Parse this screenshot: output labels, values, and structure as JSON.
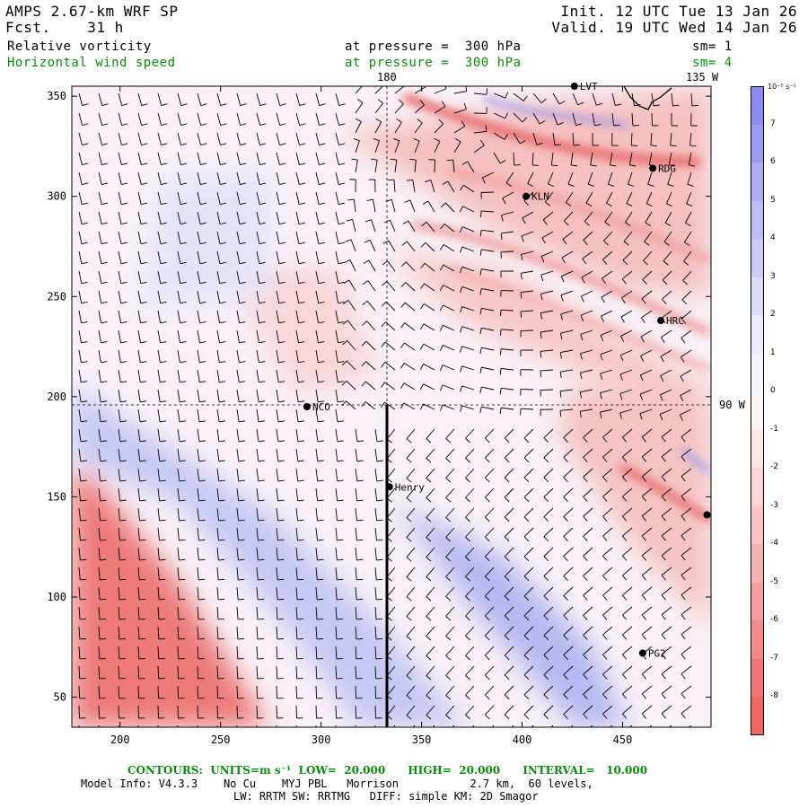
{
  "header": {
    "model": "AMPS 2.67-km WRF SP",
    "fcst_label": "Fcst.",
    "fcst_value": "31 h",
    "init": "Init. 12 UTC Tue 13 Jan 26",
    "valid": "Valid. 19 UTC Wed 14 Jan 26",
    "field1_name": "Relative vorticity",
    "field1_level": "at pressure =  300 hPa",
    "field1_sm": "sm= 1",
    "field2_name": "Horizontal wind speed",
    "field2_level": "at pressure =  300 hPa",
    "field2_sm": "sm= 4"
  },
  "map": {
    "x_ticks": [
      200,
      250,
      300,
      350,
      400,
      450
    ],
    "y_ticks": [
      50,
      100,
      150,
      200,
      250,
      300,
      350
    ],
    "x_range": [
      176,
      494
    ],
    "y_range": [
      35,
      355
    ],
    "meridian_180_label": "180",
    "meridian_135w_label": "135 W",
    "meridian_90w_label": "90 W",
    "stations": [
      {
        "name": "LVT",
        "x": 426,
        "y": 355
      },
      {
        "name": "RDG",
        "x": 465,
        "y": 314
      },
      {
        "name": "KLN",
        "x": 402,
        "y": 300
      },
      {
        "name": "HRC",
        "x": 469,
        "y": 238
      },
      {
        "name": "NCO",
        "x": 293,
        "y": 195
      },
      {
        "name": "Henry",
        "x": 334,
        "y": 155
      },
      {
        "name": "PG2",
        "x": 460,
        "y": 72
      },
      {
        "name": "",
        "x": 492,
        "y": 141
      }
    ],
    "colors": {
      "positive": "#e83030",
      "negative": "#4040d8",
      "wind": "#000000",
      "contour_label": "#0a8a0a"
    }
  },
  "colorbar": {
    "unit": "10⁻⁵ s⁻¹",
    "labels": [
      "7",
      "6",
      "5",
      "4",
      "3",
      "2",
      "1",
      "0",
      "-1",
      "-2",
      "-3",
      "-4",
      "-5",
      "-6",
      "-7",
      "-8"
    ],
    "swatches": [
      "#8a8af0",
      "#9a9af2",
      "#acacf4",
      "#bcbcf6",
      "#ccccf8",
      "#dcdcfa",
      "#eaeafc",
      "#f4f4fe",
      "#fef4f4",
      "#fce6e6",
      "#fad6d6",
      "#f8c4c4",
      "#f6b2b2",
      "#f49e9e",
      "#f28a8a",
      "#f07878",
      "#ee6868"
    ]
  },
  "footer": {
    "contours": "CONTOURS:  UNITS=m s⁻¹  LOW=  20.000      HIGH=  20.000      INTERVAL=   10.000",
    "model_info": "Model Info: V4.3.3    No Cu    MYJ PBL   Morrison           2.7 km,  60 levels,",
    "physics": "LW: RRTM SW: RRTMG   DIFF: simple KM: 2D Smagor"
  }
}
